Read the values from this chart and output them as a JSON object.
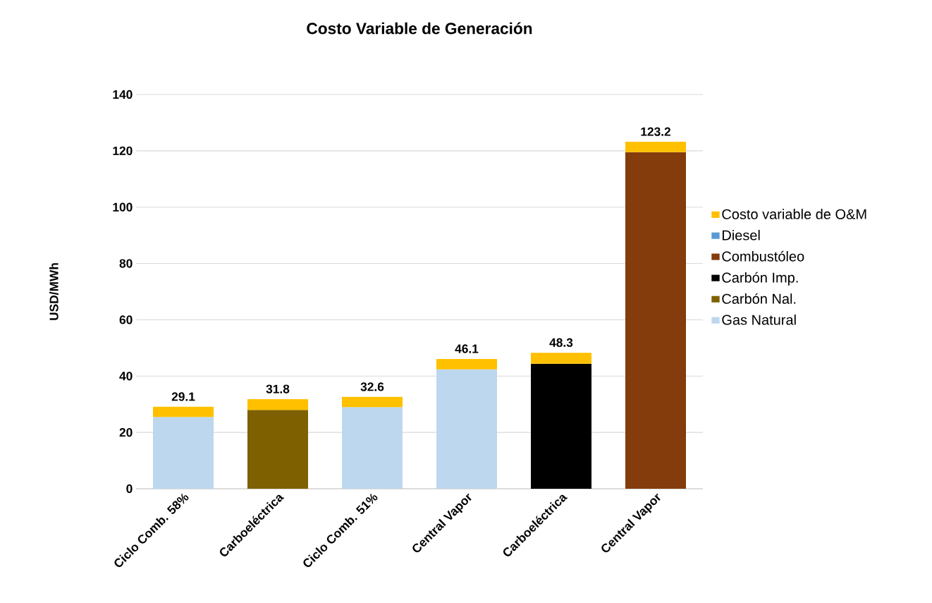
{
  "chart_data": {
    "type": "bar",
    "stacked": true,
    "title": "Costo Variable de Generación",
    "ylabel": "USD/MWh",
    "categories": [
      "Ciclo Comb. 58%",
      "Carboeléctrica",
      "Ciclo Comb. 51%",
      "Central Vapor",
      "Carboeléctrica",
      "Central Vapor"
    ],
    "series": [
      {
        "name": "Gas Natural",
        "color": "#bdd7ee",
        "values": [
          25.5,
          null,
          29.0,
          42.4,
          null,
          null
        ]
      },
      {
        "name": "Carbón Nal.",
        "color": "#7f6000",
        "values": [
          null,
          28.0,
          null,
          null,
          null,
          null
        ]
      },
      {
        "name": "Carbón Imp.",
        "color": "#000000",
        "values": [
          null,
          null,
          null,
          null,
          44.4,
          null
        ]
      },
      {
        "name": "Combustóleo",
        "color": "#843c0c",
        "values": [
          null,
          null,
          null,
          null,
          null,
          119.5
        ]
      },
      {
        "name": "Diesel",
        "color": "#5b9bd5",
        "values": [
          null,
          null,
          null,
          null,
          null,
          null
        ]
      },
      {
        "name": "Costo variable de O&M",
        "color": "#ffc000",
        "values": [
          3.6,
          3.8,
          3.6,
          3.7,
          3.9,
          3.7
        ]
      }
    ],
    "totals": [
      "29.1",
      "31.8",
      "32.6",
      "46.1",
      "48.3",
      "123.2"
    ],
    "ylim": [
      0,
      140
    ],
    "yticks": [
      0,
      20,
      40,
      60,
      80,
      100,
      120,
      140
    ],
    "grid": "y",
    "legend": "right"
  }
}
